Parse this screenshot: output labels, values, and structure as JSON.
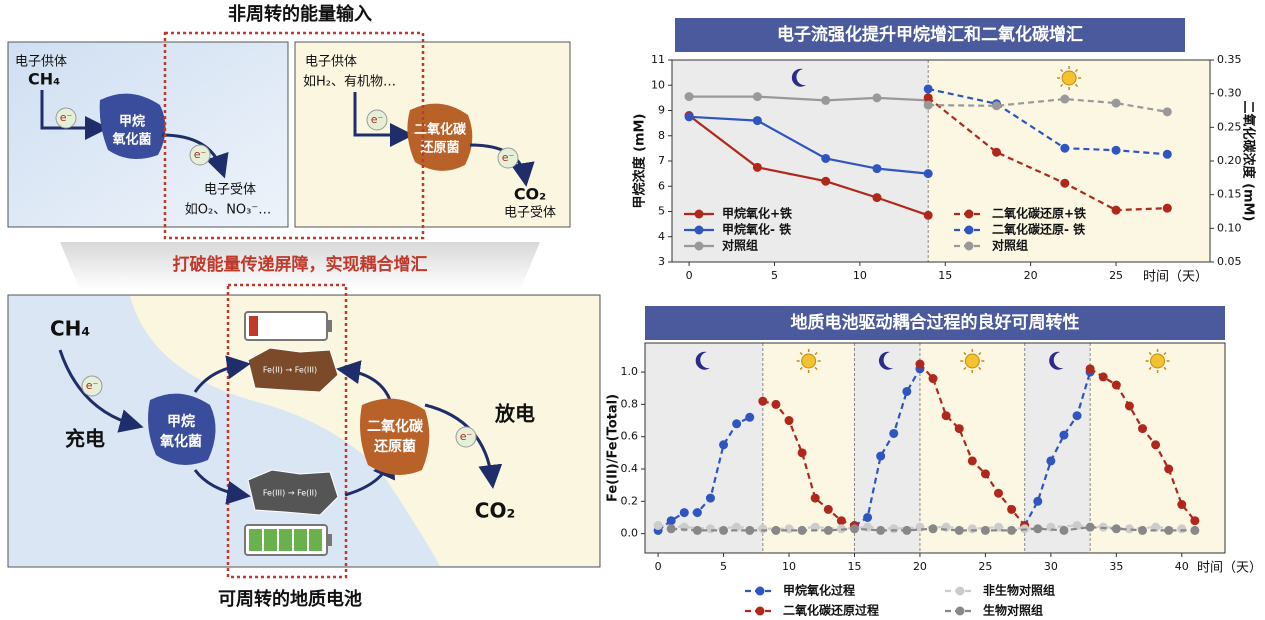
{
  "chart_data": [
    {
      "type": "line",
      "title": "电子流强化提升甲烷增汇和二氧化碳增汇",
      "xlabel": "时间（天）",
      "ylabel": "甲烷浓度 (mM)",
      "y2label": "二氧化碳浓度 (mM)",
      "xlim": [
        -1,
        30.5
      ],
      "xticks": [
        0,
        5,
        10,
        15,
        20,
        25
      ],
      "ylim": [
        3,
        11
      ],
      "yticks": [
        3,
        4,
        5,
        6,
        7,
        8,
        9,
        10,
        11
      ],
      "y2lim": [
        0.05,
        0.35
      ],
      "y2ticks": [
        0.05,
        {
          "value": 0.1,
          "label": "0.10"
        },
        0.15,
        {
          "value": 0.2,
          "label": "0.20"
        },
        0.25,
        {
          "value": 0.3,
          "label": "0.30"
        },
        0.35
      ],
      "legend": "inside",
      "shading": [
        {
          "from": -1,
          "to": 14,
          "color": "#ebebeb",
          "icon": "moon"
        },
        {
          "from": 14,
          "to": 30.5,
          "color": "#fcf7e3",
          "icon": "sun"
        }
      ],
      "series": [
        {
          "name": "甲烷氧化+铁",
          "color": "#b0281c",
          "dash": false,
          "x": [
            0,
            4,
            8,
            11,
            14
          ],
          "values": [
            8.8,
            6.75,
            6.2,
            5.55,
            4.85
          ]
        },
        {
          "name": "甲烷氧化- 铁",
          "color": "#2e55c0",
          "dash": false,
          "x": [
            0,
            4,
            8,
            11,
            14
          ],
          "values": [
            8.75,
            8.6,
            7.1,
            6.7,
            6.5
          ]
        },
        {
          "name": "对照组",
          "color": "#999999",
          "dash": false,
          "x": [
            0,
            4,
            8,
            11,
            14
          ],
          "values": [
            9.55,
            9.55,
            9.4,
            9.5,
            9.4
          ]
        },
        {
          "name": "二氧化碳还原+铁",
          "color": "#b0281c",
          "dash": true,
          "axis": "y2",
          "x": [
            14,
            18,
            22,
            25,
            28
          ],
          "values": [
            0.294,
            0.213,
            0.167,
            0.127,
            0.13
          ]
        },
        {
          "name": "二氧化碳还原- 铁",
          "color": "#2e55c0",
          "dash": true,
          "axis": "y2",
          "x": [
            14,
            18,
            22,
            25,
            28
          ],
          "values": [
            0.307,
            0.285,
            0.219,
            0.216,
            0.21
          ]
        },
        {
          "name": "对照组",
          "color": "#999999",
          "dash": true,
          "axis": "y2",
          "x": [
            14,
            18,
            22,
            25,
            28
          ],
          "values": [
            0.283,
            0.282,
            0.292,
            0.286,
            0.273
          ]
        }
      ]
    },
    {
      "type": "line",
      "title": "地质电池驱动耦合过程的良好可周转性",
      "xlabel": "时间（天）",
      "ylabel": "Fe(II)/Fe(Total)",
      "xlim": [
        -1,
        43.3
      ],
      "xticks": [
        0,
        5,
        10,
        15,
        20,
        25,
        30,
        35,
        40
      ],
      "ylim": [
        -0.12,
        1.18
      ],
      "yticks": [
        {
          "value": 0,
          "label": "0.0"
        },
        {
          "value": 0.2,
          "label": "0.2"
        },
        {
          "value": 0.4,
          "label": "0.4"
        },
        {
          "value": 0.6,
          "label": "0.6"
        },
        {
          "value": 0.8,
          "label": "0.8"
        },
        {
          "value": 1,
          "label": "1.0"
        }
      ],
      "legend": "below",
      "shading": [
        {
          "from": -1,
          "to": 8,
          "color": "#ebebeb",
          "icon": "moon"
        },
        {
          "from": 8,
          "to": 15,
          "color": "#fcf7e3",
          "icon": "sun"
        },
        {
          "from": 15,
          "to": 20,
          "color": "#ebebeb",
          "icon": "moon"
        },
        {
          "from": 20,
          "to": 28,
          "color": "#fcf7e3",
          "icon": "sun"
        },
        {
          "from": 28,
          "to": 33,
          "color": "#ebebeb",
          "icon": "moon"
        },
        {
          "from": 33,
          "to": 43.3,
          "color": "#fcf7e3",
          "icon": "sun"
        }
      ],
      "series": [
        {
          "name": "甲烷氧化过程",
          "color": "#2e55c0",
          "dash": true,
          "x": [
            0,
            1,
            2,
            3,
            4,
            5,
            6,
            7,
            null,
            15,
            16,
            17,
            18,
            19,
            20,
            null,
            28,
            29,
            30,
            31,
            32,
            33
          ],
          "values": [
            0.02,
            0.08,
            0.13,
            0.13,
            0.22,
            0.55,
            0.68,
            0.72,
            null,
            0.05,
            0.1,
            0.48,
            0.62,
            0.88,
            1.02,
            null,
            0.05,
            0.2,
            0.45,
            0.61,
            0.73,
            1.0
          ]
        },
        {
          "name": "二氧化碳还原过程",
          "color": "#b0281c",
          "dash": true,
          "x": [
            8,
            9,
            10,
            11,
            12,
            13,
            14,
            15,
            null,
            20,
            21,
            22,
            23,
            24,
            25,
            26,
            27,
            28,
            null,
            33,
            34,
            35,
            36,
            37,
            38,
            39,
            40,
            41
          ],
          "values": [
            0.82,
            0.8,
            0.7,
            0.5,
            0.22,
            0.15,
            0.08,
            0.05,
            null,
            1.05,
            0.96,
            0.73,
            0.65,
            0.45,
            0.37,
            0.25,
            0.15,
            0.05,
            null,
            1.02,
            0.97,
            0.92,
            0.79,
            0.65,
            0.55,
            0.4,
            0.18,
            0.08
          ]
        },
        {
          "name": "非生物对照组",
          "color": "#cccccc",
          "dash": true,
          "x": [
            0,
            2,
            4,
            6,
            8,
            10,
            12,
            14,
            16,
            18,
            20,
            22,
            24,
            26,
            28,
            30,
            32,
            34,
            36,
            38,
            40
          ],
          "values": [
            0.05,
            0.04,
            0.03,
            0.04,
            0.03,
            0.03,
            0.04,
            0.03,
            0.04,
            0.03,
            0.04,
            0.04,
            0.03,
            0.04,
            0.03,
            0.04,
            0.05,
            0.04,
            0.03,
            0.04,
            0.03
          ]
        },
        {
          "name": "生物对照组",
          "color": "#888888",
          "dash": true,
          "x": [
            1,
            3,
            5,
            7,
            9,
            11,
            13,
            15,
            17,
            19,
            21,
            23,
            25,
            27,
            29,
            31,
            33,
            35,
            37,
            39,
            41
          ],
          "values": [
            0.03,
            0.02,
            0.02,
            0.02,
            0.02,
            0.02,
            0.02,
            0.03,
            0.02,
            0.02,
            0.03,
            0.02,
            0.02,
            0.02,
            0.03,
            0.02,
            0.04,
            0.03,
            0.02,
            0.02,
            0.02
          ]
        }
      ]
    }
  ],
  "diagram": {
    "top_title": "非周转的能量输入",
    "methanotroph_panel": {
      "donor": "电子供体",
      "donor_example": "CH₄",
      "microbe": [
        "甲烷",
        "氧化菌"
      ],
      "electron": "e⁻",
      "acceptor": "电子受体",
      "acceptor_example": "如O₂、NO₃⁻…"
    },
    "reducer_panel": {
      "donor": "电子供体",
      "donor_example": "如H₂、有机物…",
      "microbe": [
        "二氧化碳",
        "还原菌"
      ],
      "electron": "e⁻",
      "product": "CO₂",
      "acceptor": "电子受体"
    },
    "banner": "打破能量传递屏障，实现耦合增汇",
    "battery": {
      "input": "CH₄",
      "charge": "充电",
      "microbe_left": [
        "甲烷",
        "氧化菌"
      ],
      "oxidation": "Fe(II) → Fe(III)",
      "reduction": "Fe(III) → Fe(II)",
      "microbe_right": [
        "二氧化碳",
        "还原菌"
      ],
      "discharge": "放电",
      "output": "CO₂",
      "electron": "e⁻"
    },
    "caption": "可周转的地质电池"
  }
}
